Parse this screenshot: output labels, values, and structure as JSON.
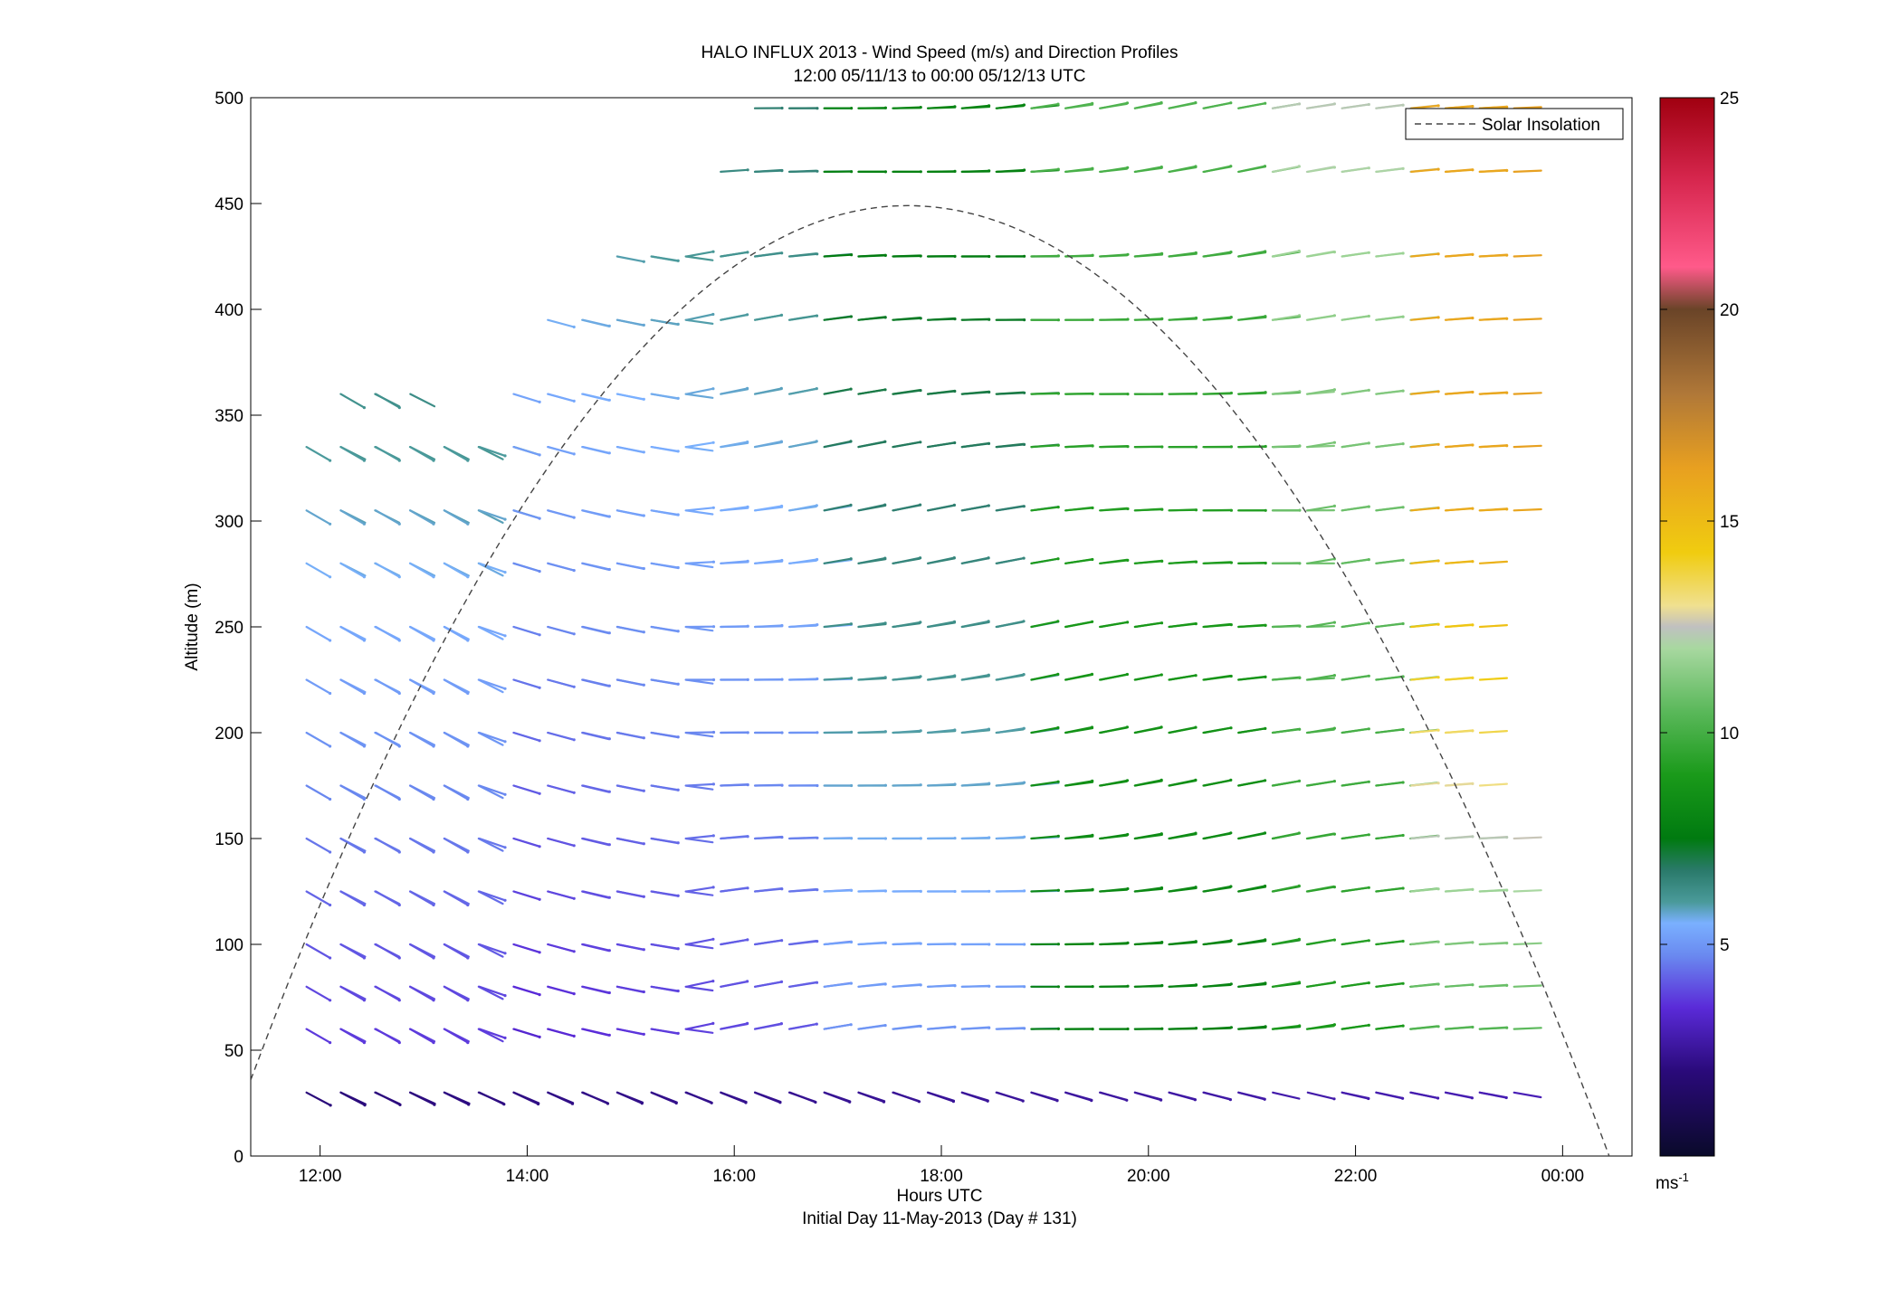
{
  "chart_data": {
    "type": "wind-barb-profile",
    "title": "HALO INFLUX 2013 - Wind Speed (m/s) and Direction Profiles",
    "subtitle": "12:00 05/11/13 to 00:00 05/12/13  UTC",
    "xlabel": "Hours UTC",
    "xlabel2": "Initial Day 11-May-2013 (Day # 131)",
    "ylabel": "Altitude (m)",
    "xlim": [
      11.33,
      24.67
    ],
    "ylim": [
      0,
      500
    ],
    "xticks": [
      {
        "value": 12,
        "label": "12:00"
      },
      {
        "value": 14,
        "label": "14:00"
      },
      {
        "value": 16,
        "label": "16:00"
      },
      {
        "value": 18,
        "label": "18:00"
      },
      {
        "value": 20,
        "label": "20:00"
      },
      {
        "value": 22,
        "label": "22:00"
      },
      {
        "value": 24,
        "label": "00:00"
      }
    ],
    "yticks": [
      "0",
      "50",
      "100",
      "150",
      "200",
      "250",
      "300",
      "350",
      "400",
      "450",
      "500"
    ],
    "legend": {
      "label": "Solar Insolation",
      "position": "top-right"
    },
    "colorbar": {
      "min": 0,
      "max": 25,
      "ticks": [
        "5",
        "10",
        "15",
        "20",
        "25"
      ],
      "unit": "ms",
      "unit_exp": "-1"
    },
    "solar_insolation": {
      "start_hour": 11.33,
      "start_alt": 36,
      "peak_hour": 17.67,
      "peak_alt": 449,
      "end_hour": 24.45,
      "end_alt": 0
    },
    "profile_hours": [
      12.0,
      12.33,
      12.67,
      13.0,
      13.33,
      13.67,
      14.0,
      14.33,
      14.67,
      15.0,
      15.33,
      15.67,
      16.0,
      16.33,
      16.67,
      17.0,
      17.33,
      17.67,
      18.0,
      18.33,
      18.67,
      19.0,
      19.33,
      19.67,
      20.0,
      20.33,
      20.67,
      21.0,
      21.33,
      21.67,
      22.0,
      22.33,
      22.67,
      23.0,
      23.33,
      23.67
    ],
    "altitudes": [
      30,
      60,
      80,
      100,
      125,
      150,
      175,
      200,
      225,
      250,
      280,
      305,
      335,
      360,
      395,
      425,
      465,
      495
    ],
    "profiles_note_speed_ms": "speed per altitude row, direction as barb angle"
  }
}
